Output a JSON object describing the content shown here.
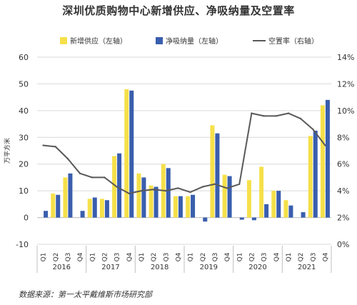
{
  "title": "深圳优质购物中心新增供应、净吸纳量及空置率",
  "source": "数据来源：第一太平戴维斯市场研究部",
  "colors": {
    "supply": "#F5E04A",
    "absorption": "#3A5EAE",
    "vacancy": "#595959",
    "grid": "#D9D9D9",
    "axis": "#BFBFBF"
  },
  "chart_data": {
    "type": "bar",
    "categories": [
      "Q1",
      "Q2",
      "Q3",
      "Q4",
      "Q1",
      "Q2",
      "Q3",
      "Q4",
      "Q1",
      "Q2",
      "Q3",
      "Q4",
      "Q1",
      "Q2",
      "Q3",
      "Q4",
      "Q1",
      "Q2",
      "Q3",
      "Q4",
      "Q1",
      "Q2",
      "Q3",
      "Q4"
    ],
    "years": [
      "2016",
      "2017",
      "2018",
      "2019",
      "2020",
      "2021"
    ],
    "ylabel": "万平方米",
    "ylim": [
      -10,
      60
    ],
    "yticks": [
      "-10",
      "0",
      "10",
      "20",
      "30",
      "40",
      "50",
      "60"
    ],
    "y2lim": [
      0,
      14
    ],
    "y2ticks": [
      "0%",
      "2%",
      "4%",
      "6%",
      "8%",
      "10%",
      "12%",
      "14%"
    ],
    "legend_position": "top",
    "series": [
      {
        "name": "新增供应（左轴）",
        "type": "bar",
        "axis": "left",
        "values": [
          0,
          9,
          15,
          0,
          7,
          7,
          23,
          48,
          16.5,
          12,
          20,
          8,
          8,
          0,
          34.5,
          16,
          0,
          14,
          19,
          10,
          6.5,
          0,
          30.5,
          42
        ]
      },
      {
        "name": "净吸纳量（左轴）",
        "type": "bar",
        "axis": "left",
        "values": [
          2.5,
          8.5,
          16.5,
          2.5,
          7.5,
          6.5,
          24,
          47.5,
          15,
          11.5,
          18.5,
          8,
          8.5,
          -1.5,
          31.5,
          15.5,
          -0.8,
          -1,
          5,
          10,
          4.5,
          2,
          32.5,
          44
        ]
      },
      {
        "name": "空置率（右轴）",
        "type": "line",
        "axis": "right",
        "values": [
          7.4,
          7.3,
          6.4,
          5.3,
          5.0,
          5.0,
          4.3,
          3.8,
          4.0,
          4.1,
          4.0,
          4.2,
          3.9,
          4.3,
          4.5,
          4.2,
          4.5,
          9.8,
          9.6,
          9.6,
          9.8,
          9.4,
          8.6,
          7.4
        ]
      }
    ]
  }
}
